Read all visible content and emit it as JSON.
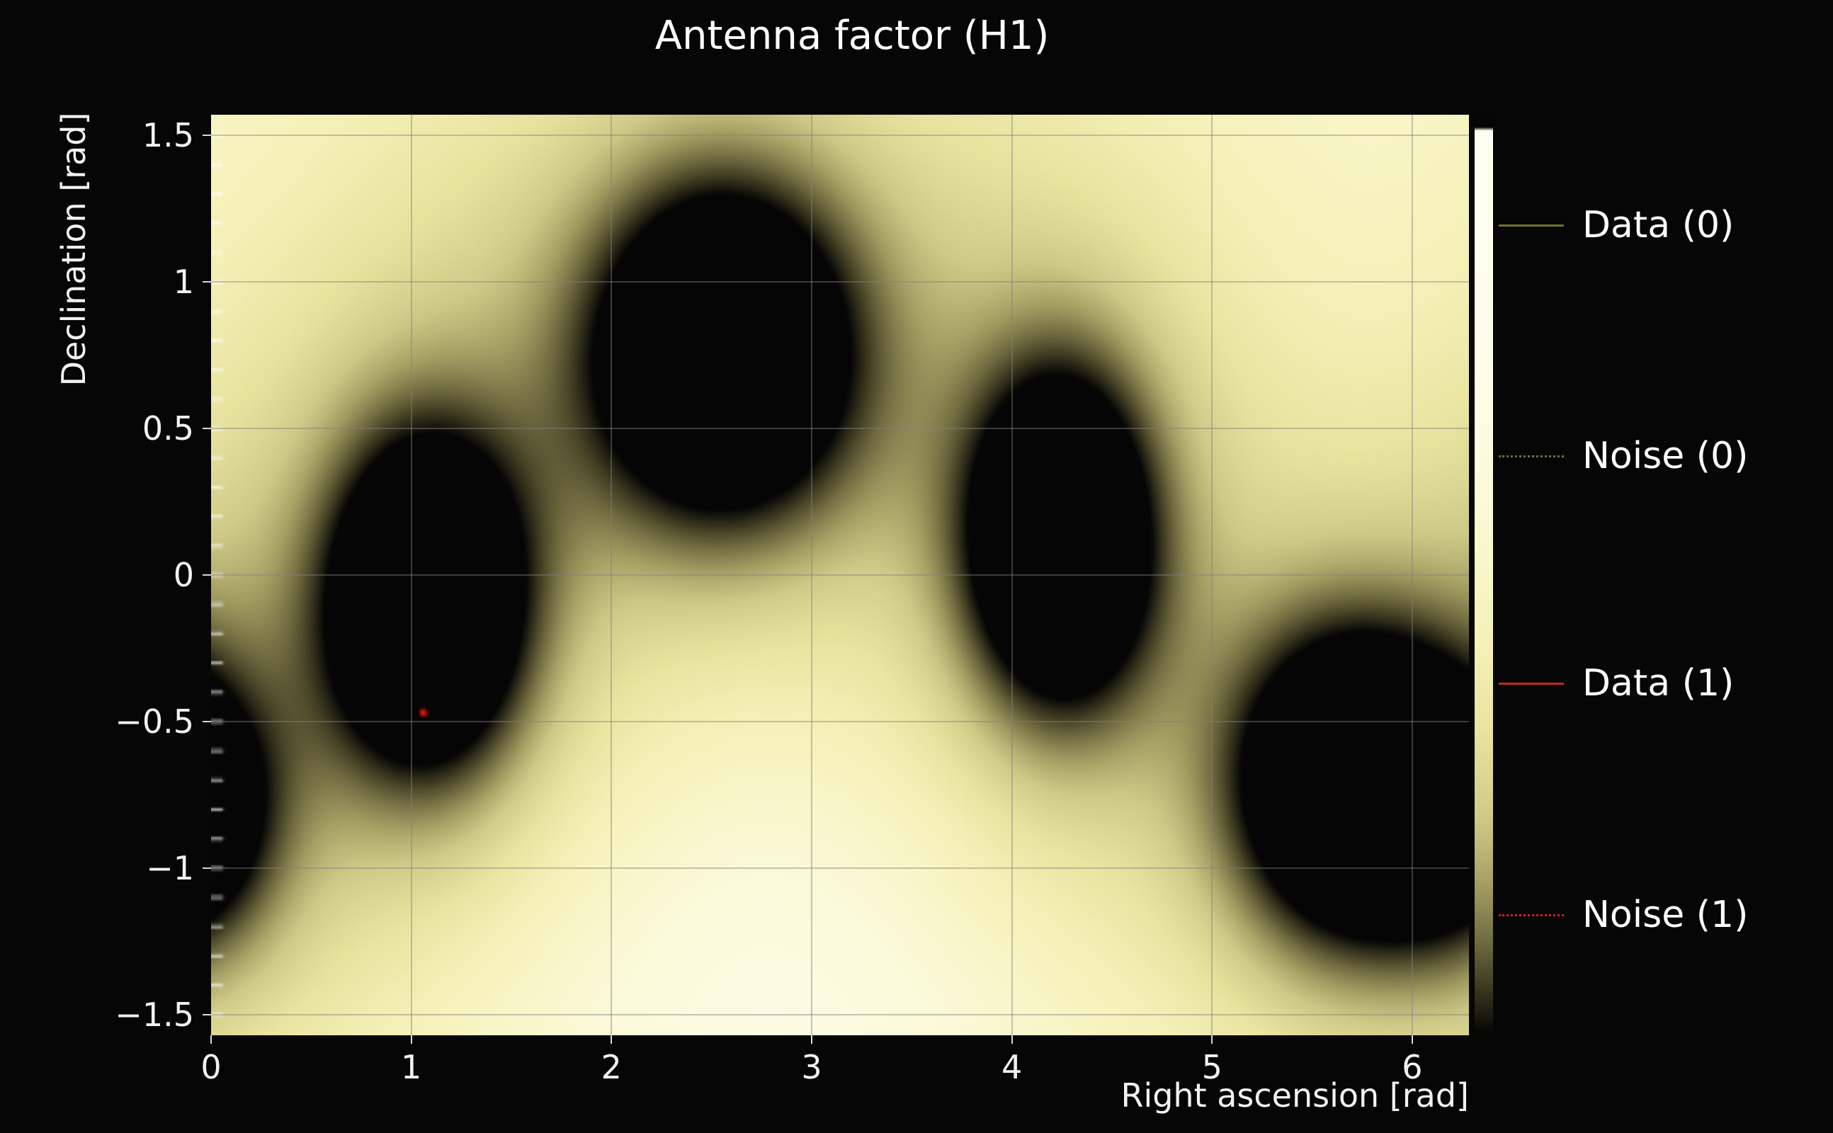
{
  "figure": {
    "background": "#060606",
    "text_color": "#f2f2f2"
  },
  "chart_data": {
    "type": "heatmap",
    "title": "Antenna factor (H1)",
    "xlabel": "Right ascension [rad]",
    "ylabel": "Declination [rad]",
    "xlim": [
      0,
      6.2832
    ],
    "ylim": [
      -1.5708,
      1.5708
    ],
    "grid": true,
    "xticks": [
      {
        "v": 0,
        "label": "0"
      },
      {
        "v": 1,
        "label": "1"
      },
      {
        "v": 2,
        "label": "2"
      },
      {
        "v": 3,
        "label": "3"
      },
      {
        "v": 4,
        "label": "4"
      },
      {
        "v": 5,
        "label": "5"
      },
      {
        "v": 6,
        "label": "6"
      }
    ],
    "yticks": [
      {
        "v": 1.5,
        "label": "1.5"
      },
      {
        "v": 1.0,
        "label": "1"
      },
      {
        "v": 0.5,
        "label": "0.5"
      },
      {
        "v": 0.0,
        "label": "0"
      },
      {
        "v": -0.5,
        "label": "−0.5"
      },
      {
        "v": -1.0,
        "label": "−1"
      },
      {
        "v": -1.5,
        "label": "−1.5"
      }
    ],
    "colormap_stops": [
      [
        0.0,
        "#fefdf0"
      ],
      [
        0.1,
        "#fbf9d9"
      ],
      [
        0.22,
        "#f6f2bb"
      ],
      [
        0.35,
        "#e9e4a0"
      ],
      [
        0.5,
        "#cfc987"
      ],
      [
        0.63,
        "#a49e63"
      ],
      [
        0.76,
        "#6f6a40"
      ],
      [
        0.88,
        "#3a371f"
      ],
      [
        1.0,
        "#050505"
      ]
    ],
    "background_field": {
      "level": 0.15,
      "dip": 0.13,
      "cx": 2.8,
      "cy": -1.15,
      "sx": 2.0,
      "sy": 0.95
    },
    "halo": {
      "scale": 2.3,
      "amp_ratio": 0.22
    },
    "sky_sources": [
      {
        "ra": 1.08,
        "dec": -0.1,
        "sx": 0.34,
        "sy": 0.4,
        "amp": 1.4
      },
      {
        "ra": 2.56,
        "dec": 0.76,
        "sx": 0.45,
        "sy": 0.4,
        "amp": 1.4
      },
      {
        "ra": 4.24,
        "dec": 0.12,
        "sx": 0.32,
        "sy": 0.4,
        "amp": 1.38
      },
      {
        "ra": 5.71,
        "dec": -0.72,
        "sx": 0.4,
        "sy": 0.36,
        "amp": 1.4
      },
      {
        "ra": -0.05,
        "dec": -0.83,
        "sx": 0.28,
        "sy": 0.3,
        "amp": 0.55
      }
    ],
    "noise_marker": {
      "ra": 1.06,
      "dec": -0.47,
      "color": "#dd1111"
    },
    "minor_ticks": {
      "axis": "y-left",
      "step": 0.1,
      "color": "rgba(255,255,255,0.85)"
    },
    "colorbar": {
      "gamma": 2.6,
      "top_cap_frac": 0.013
    },
    "legend": [
      {
        "label": "Data (0)",
        "color": "#70702c",
        "style": "solid"
      },
      {
        "label": "Noise (0)",
        "color": "#70702c",
        "style": "dotted"
      },
      {
        "label": "Data (1)",
        "color": "#c8281e",
        "style": "solid"
      },
      {
        "label": "Noise (1)",
        "color": "#c8281e",
        "style": "dotted"
      }
    ]
  }
}
